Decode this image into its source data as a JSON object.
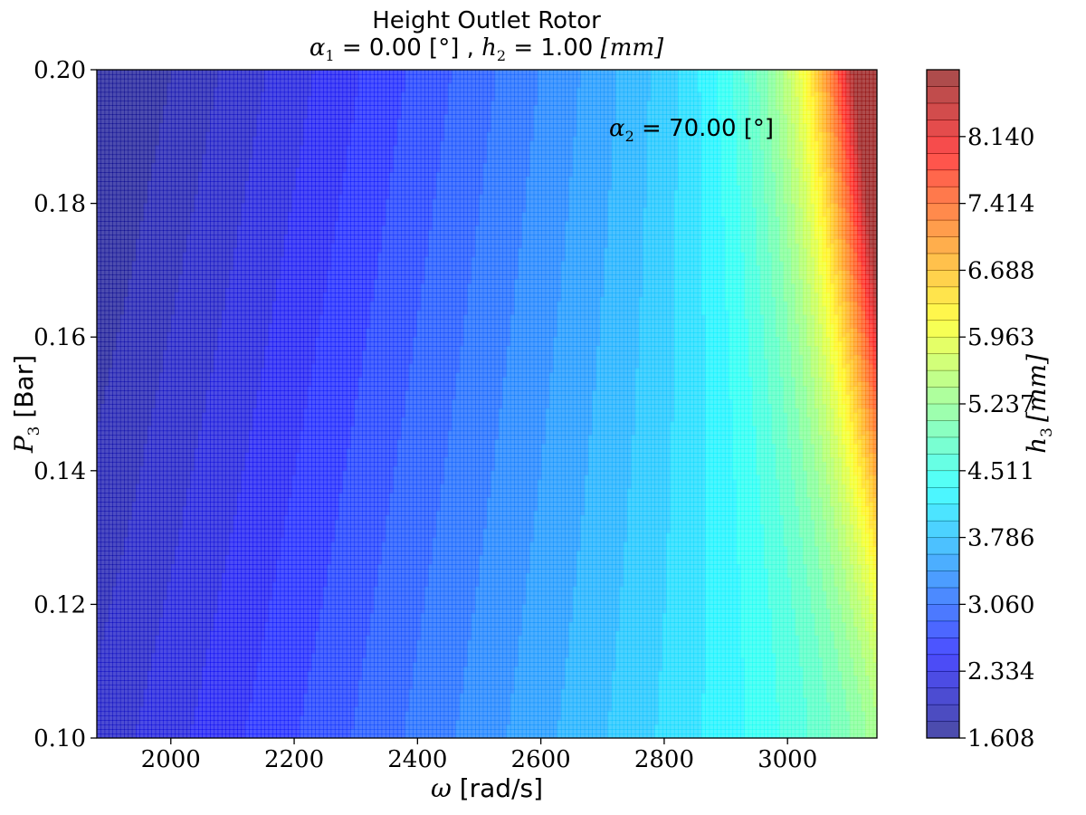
{
  "chart_data": {
    "type": "contourf",
    "title": "Height Outlet Rotor",
    "subtitle_parts": {
      "a1_sym": "α",
      "a1_sub": "1",
      "a1_value": " = 0.00 [°] , ",
      "h2_sym": "h",
      "h2_sub": "2",
      "h2_value": " = 1.00 ",
      "h2_unit": "[mm]"
    },
    "annotation": {
      "sym": "α",
      "sub": "2",
      "text": " = 70.00 [°]"
    },
    "xlabel": {
      "sym": "ω",
      "text": " [rad/s]"
    },
    "ylabel": {
      "sym": "P",
      "sub": "3",
      "text": " [Bar]"
    },
    "colorbar_label": {
      "sym": "h",
      "sub": "3",
      "unit": "[mm]"
    },
    "xlim": [
      1880,
      3145
    ],
    "ylim": [
      0.1,
      0.2
    ],
    "xticks": [
      "2000",
      "2200",
      "2400",
      "2600",
      "2800",
      "3000"
    ],
    "xtick_values": [
      2000,
      2200,
      2400,
      2600,
      2800,
      3000
    ],
    "yticks": [
      "0.10",
      "0.12",
      "0.14",
      "0.16",
      "0.18",
      "0.20"
    ],
    "ytick_values": [
      0.1,
      0.12,
      0.14,
      0.16,
      0.18,
      0.2
    ],
    "colorbar_range": [
      1.608,
      8.866
    ],
    "colorbar_ticks": [
      "1.608",
      "2.334",
      "3.060",
      "3.786",
      "4.511",
      "5.237",
      "5.963",
      "6.688",
      "7.414",
      "8.140"
    ],
    "colorbar_tick_values": [
      1.608,
      2.334,
      3.06,
      3.786,
      4.511,
      5.237,
      5.963,
      6.688,
      7.414,
      8.14
    ],
    "n_levels": 40,
    "colormap": "jet",
    "alpha": 0.7,
    "grid": false
  }
}
